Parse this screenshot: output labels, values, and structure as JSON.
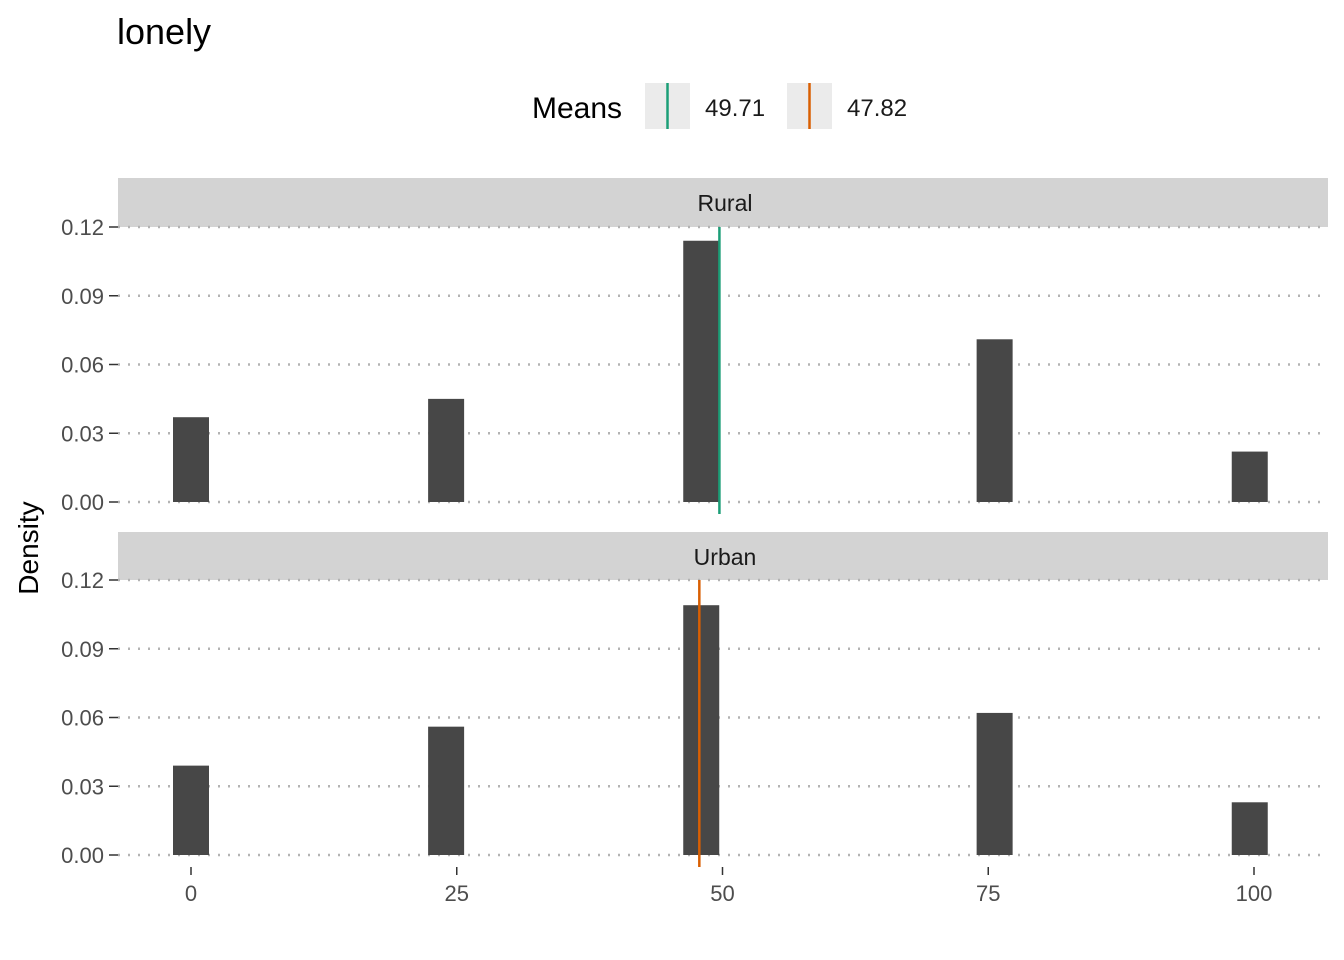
{
  "chart_data": {
    "type": "bar",
    "title": "lonely",
    "ylabel": "Density",
    "xlabel": "",
    "x_ticks": [
      0,
      25,
      50,
      75,
      100
    ],
    "y_ticks": [
      0.0,
      0.03,
      0.06,
      0.09,
      0.12
    ],
    "y_tick_labels": [
      "0.00",
      "0.03",
      "0.06",
      "0.09",
      "0.12"
    ],
    "xlim": [
      -7,
      106
    ],
    "ylim": [
      0,
      0.12
    ],
    "grid": "horizontal dotted",
    "bar_color": "#474747",
    "legend": {
      "title": "Means",
      "position": "top",
      "entries": [
        {
          "label": "49.71",
          "color": "#1b9e77"
        },
        {
          "label": "47.82",
          "color": "#d95f02"
        }
      ]
    },
    "panels": [
      {
        "name": "Rural",
        "bars": [
          {
            "x": 0,
            "density": 0.037
          },
          {
            "x": 24,
            "density": 0.045
          },
          {
            "x": 48,
            "density": 0.114
          },
          {
            "x": 75.6,
            "density": 0.071
          },
          {
            "x": 99.6,
            "density": 0.022
          }
        ],
        "mean": 49.71,
        "mean_color": "#1b9e77"
      },
      {
        "name": "Urban",
        "bars": [
          {
            "x": 0,
            "density": 0.039
          },
          {
            "x": 24,
            "density": 0.056
          },
          {
            "x": 48,
            "density": 0.109
          },
          {
            "x": 75.6,
            "density": 0.062
          },
          {
            "x": 99.6,
            "density": 0.023
          }
        ],
        "mean": 47.82,
        "mean_color": "#d95f02"
      }
    ]
  }
}
